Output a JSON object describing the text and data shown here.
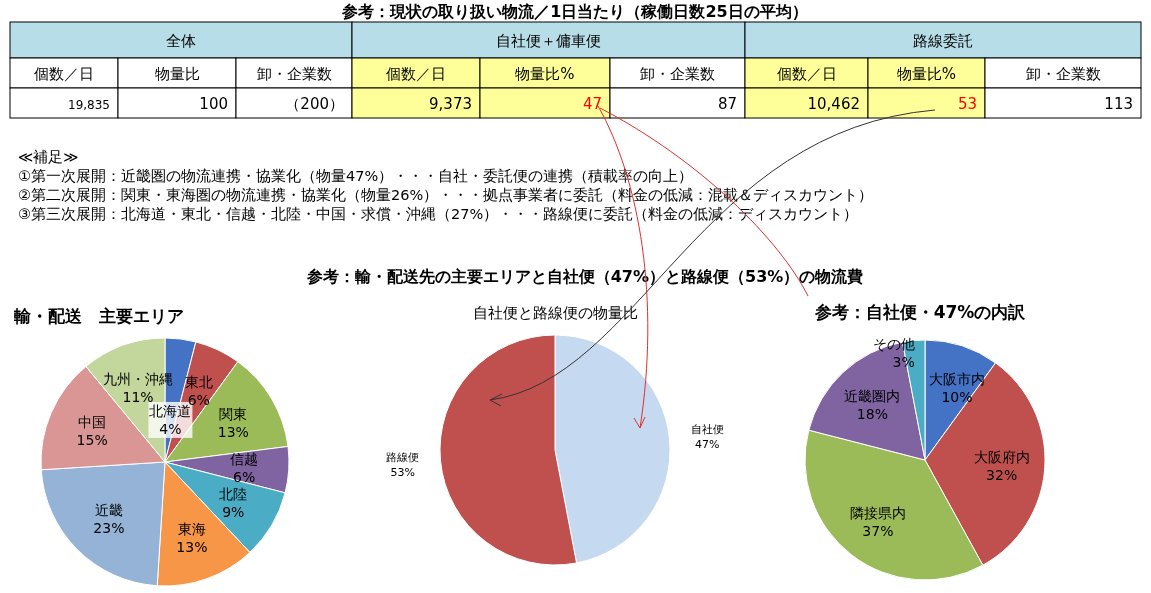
{
  "chart_data": [
    {
      "type": "other",
      "title": "参考：現状の取り扱い物流／1日当たり（稼働日数25日の平均）",
      "subtitle": "参考：輸・配送先の主要エリアと自社便（47%）と路線便（53%）の物流費",
      "annotations": [
        "全体",
        "自社便＋傭車便",
        "路線委託",
        "個数／日",
        "物量比",
        "卸・企業数",
        "個数／日",
        "物量比%",
        "卸・企業数",
        "個数／日",
        "物量比%",
        "卸・企業数",
        "19,835",
        "100",
        "（200）",
        "9,373",
        "47",
        "87",
        "10,462",
        "53",
        "113",
        "≪補足≫",
        "①第一次展開：近畿圏の物流連携・協業化（物量47%）・・・自社・委託便の連携（積載率の向上）",
        "②第二次展開：関東・東海圏の物流連携・協業化（物量26%）・・・拠点事業者に委託（料金の低減：混載＆ディスカウント）",
        "③第三次展開：北海道・東北・信越・北陸・中国・求償・沖縄（27%）・・・路線便に委託（料金の低減：ディスカウント）"
      ]
    },
    {
      "type": "pie",
      "title": "輸・配送　主要エリア",
      "categories": [
        "北海道",
        "東北",
        "関東",
        "信越",
        "北陸",
        "東海",
        "近畿",
        "中国",
        "九州・沖縄"
      ],
      "values": [
        4,
        6,
        13,
        6,
        9,
        13,
        23,
        15,
        11
      ],
      "colors": [
        "#4472c4",
        "#c0504d",
        "#9bbb59",
        "#8064a2",
        "#4bacc6",
        "#f79646",
        "#95b3d7",
        "#d99694",
        "#c3d69b"
      ],
      "value_labels": [
        "4%",
        "6%",
        "13%",
        "6%",
        "9%",
        "13%",
        "23%",
        "15%",
        "11%"
      ]
    },
    {
      "type": "pie",
      "title": "自社便と路線便の物量比",
      "categories": [
        "自社便",
        "路線便"
      ],
      "values": [
        47,
        53
      ],
      "colors": [
        "#c5d9f1",
        "#c0504d"
      ],
      "value_labels": [
        "47%",
        "53%"
      ]
    },
    {
      "type": "pie",
      "title": "参考：自社便・47%の内訳",
      "categories": [
        "大阪市内",
        "大阪府内",
        "隣接県内",
        "近畿圏内",
        "その他"
      ],
      "values": [
        10,
        32,
        37,
        18,
        3
      ],
      "colors": [
        "#4472c4",
        "#c0504d",
        "#9bbb59",
        "#8064a2",
        "#4bacc6"
      ],
      "value_labels": [
        "10%",
        "32%",
        "37%",
        "18%",
        "3%"
      ]
    }
  ]
}
